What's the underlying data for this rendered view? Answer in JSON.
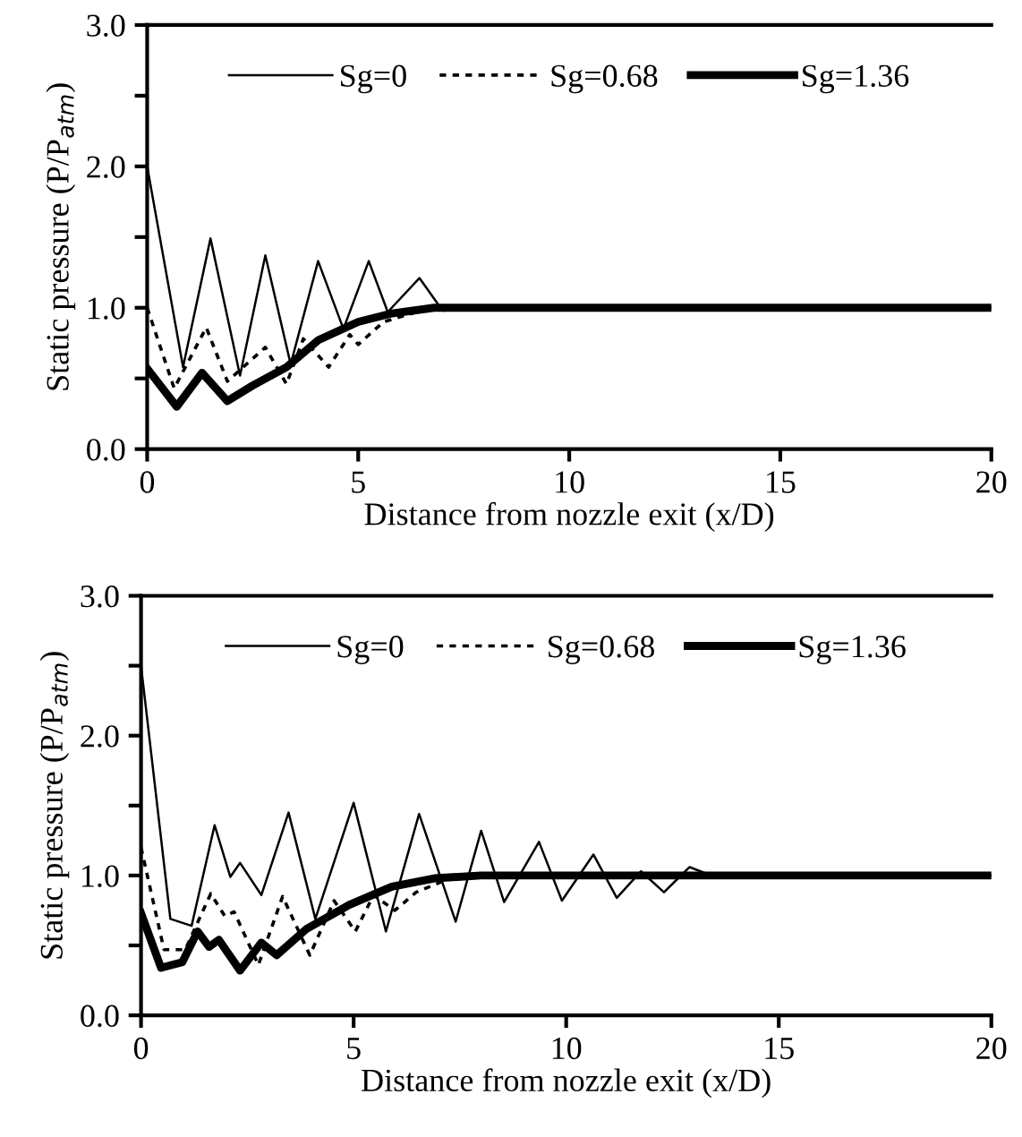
{
  "chart_data": [
    {
      "type": "line",
      "xlabel": "Distance from nozzle exit (x/D)",
      "ylabel": "Static pressure (P/P$_{atm}$)",
      "xlim": [
        0,
        20
      ],
      "ylim": [
        0,
        3
      ],
      "xticks": [
        0,
        5,
        10,
        15,
        20
      ],
      "yticks": [
        {
          "value": 0,
          "label": "0.0"
        },
        {
          "value": 0.5,
          "label": null
        },
        {
          "value": 1,
          "label": "1.0"
        },
        {
          "value": 1.5,
          "label": null
        },
        {
          "value": 2,
          "label": "2.0"
        },
        {
          "value": 2.5,
          "label": null
        },
        {
          "value": 3,
          "label": "3.0"
        }
      ],
      "legend": "top",
      "grid": false,
      "marker": "none",
      "series": [
        {
          "name": "Sg=0",
          "color": "#000000",
          "line_style": "solid",
          "x": [
            0,
            0.85,
            1.5,
            2.2,
            2.8,
            3.4,
            4.05,
            4.65,
            5.25,
            5.7,
            6.45,
            7.0,
            8,
            10,
            12,
            15,
            20
          ],
          "values": [
            2.0,
            0.58,
            1.49,
            0.52,
            1.37,
            0.6,
            1.33,
            0.85,
            1.33,
            0.97,
            1.21,
            0.98,
            1.0,
            1.0,
            1.0,
            1.0,
            1.0
          ]
        },
        {
          "name": "Sg=0.68",
          "color": "#000000",
          "line_style": "dotted",
          "x": [
            0,
            0.64,
            1.4,
            1.9,
            2.8,
            3.3,
            3.7,
            4.3,
            4.8,
            5.0,
            5.6,
            6.5,
            8,
            10,
            12,
            15,
            20
          ],
          "values": [
            1.0,
            0.43,
            0.86,
            0.48,
            0.72,
            0.46,
            0.78,
            0.58,
            0.81,
            0.74,
            0.9,
            0.98,
            1.0,
            1.0,
            1.0,
            1.0,
            1.0
          ]
        },
        {
          "name": "Sg=1.36",
          "color": "#000000",
          "line_style": "solid",
          "x": [
            0,
            0.7,
            1.3,
            1.9,
            2.5,
            3.3,
            4.05,
            5.0,
            5.8,
            6.8,
            8,
            10,
            12,
            15,
            20
          ],
          "values": [
            0.57,
            0.3,
            0.54,
            0.34,
            0.45,
            0.58,
            0.77,
            0.9,
            0.96,
            1.0,
            1.0,
            1.0,
            1.0,
            1.0,
            1.0
          ]
        }
      ]
    },
    {
      "type": "line",
      "xlabel": "Distance from nozzle exit (x/D)",
      "ylabel": "Static pressure (P/P$_{atm}$)",
      "xlim": [
        0,
        20
      ],
      "ylim": [
        0,
        3
      ],
      "xticks": [
        0,
        5,
        10,
        15,
        20
      ],
      "yticks": [
        {
          "value": 0,
          "label": "0.0"
        },
        {
          "value": 0.5,
          "label": null
        },
        {
          "value": 1,
          "label": "1.0"
        },
        {
          "value": 1.5,
          "label": null
        },
        {
          "value": 2,
          "label": "2.0"
        },
        {
          "value": 2.5,
          "label": null
        },
        {
          "value": 3,
          "label": "3.0"
        }
      ],
      "legend": "top",
      "grid": false,
      "marker": "none",
      "series": [
        {
          "name": "Sg=0",
          "color": "#000000",
          "line_style": "solid",
          "x": [
            0,
            0.69,
            1.19,
            1.73,
            2.1,
            2.33,
            2.83,
            3.47,
            4.1,
            5.0,
            5.76,
            6.54,
            7.4,
            8.0,
            8.54,
            9.36,
            9.9,
            10.64,
            11.19,
            11.76,
            12.3,
            12.9,
            13.5,
            15,
            20
          ],
          "values": [
            2.5,
            0.69,
            0.64,
            1.36,
            0.99,
            1.09,
            0.86,
            1.45,
            0.69,
            1.52,
            0.6,
            1.44,
            0.67,
            1.32,
            0.81,
            1.24,
            0.82,
            1.15,
            0.84,
            1.03,
            0.88,
            1.06,
            0.99,
            1.0,
            1.0
          ]
        },
        {
          "name": "Sg=0.68",
          "color": "#000000",
          "line_style": "dotted",
          "x": [
            0,
            0.54,
            1.04,
            1.64,
            1.97,
            2.19,
            2.76,
            3.33,
            3.97,
            4.54,
            5.04,
            5.47,
            5.97,
            6.47,
            7.19,
            8,
            10,
            15,
            20
          ],
          "values": [
            1.2,
            0.47,
            0.47,
            0.87,
            0.71,
            0.74,
            0.36,
            0.85,
            0.43,
            0.82,
            0.6,
            0.86,
            0.75,
            0.88,
            0.97,
            1.0,
            1.0,
            1.0,
            1.0
          ]
        },
        {
          "name": "Sg=1.36",
          "color": "#000000",
          "line_style": "solid",
          "x": [
            0,
            0.47,
            0.97,
            1.33,
            1.6,
            1.83,
            2.33,
            2.83,
            3.19,
            3.9,
            4.9,
            5.9,
            6.9,
            8,
            10,
            15,
            20
          ],
          "values": [
            0.73,
            0.34,
            0.38,
            0.6,
            0.49,
            0.54,
            0.32,
            0.52,
            0.43,
            0.62,
            0.79,
            0.92,
            0.98,
            1.0,
            1.0,
            1.0,
            1.0
          ]
        }
      ]
    }
  ]
}
